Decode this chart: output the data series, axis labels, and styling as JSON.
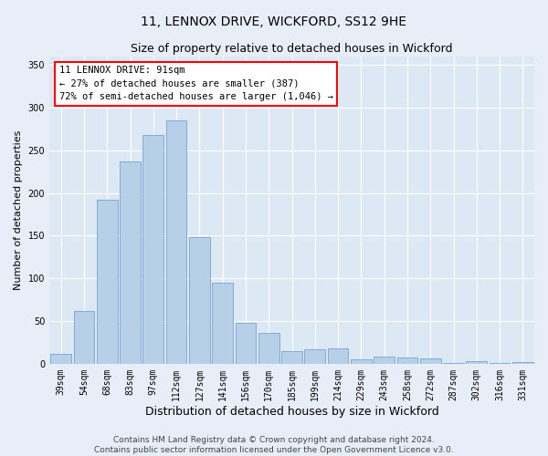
{
  "title1": "11, LENNOX DRIVE, WICKFORD, SS12 9HE",
  "title2": "Size of property relative to detached houses in Wickford",
  "xlabel": "Distribution of detached houses by size in Wickford",
  "ylabel": "Number of detached properties",
  "categories": [
    "39sqm",
    "54sqm",
    "68sqm",
    "83sqm",
    "97sqm",
    "112sqm",
    "127sqm",
    "141sqm",
    "156sqm",
    "170sqm",
    "185sqm",
    "199sqm",
    "214sqm",
    "229sqm",
    "243sqm",
    "258sqm",
    "272sqm",
    "287sqm",
    "302sqm",
    "316sqm",
    "331sqm"
  ],
  "values": [
    12,
    62,
    192,
    237,
    268,
    285,
    148,
    95,
    48,
    36,
    15,
    17,
    18,
    5,
    8,
    7,
    6,
    1,
    3,
    1,
    2
  ],
  "bar_color": "#b8cfe8",
  "bar_edge_color": "#6699cc",
  "annotation_line": "11 LENNOX DRIVE: 91sqm",
  "annotation_line2": "← 27% of detached houses are smaller (387)",
  "annotation_line3": "72% of semi-detached houses are larger (1,046) →",
  "box_edge_color": "red",
  "title1_fontsize": 10,
  "title2_fontsize": 9,
  "xlabel_fontsize": 9,
  "ylabel_fontsize": 8,
  "tick_fontsize": 7,
  "ylim": [
    0,
    360
  ],
  "yticks": [
    0,
    50,
    100,
    150,
    200,
    250,
    300,
    350
  ],
  "bg_color": "#dde8f5",
  "grid_color": "#ffffff",
  "footer1": "Contains HM Land Registry data © Crown copyright and database right 2024.",
  "footer2": "Contains public sector information licensed under the Open Government Licence v3.0.",
  "footer_fontsize": 6.5
}
